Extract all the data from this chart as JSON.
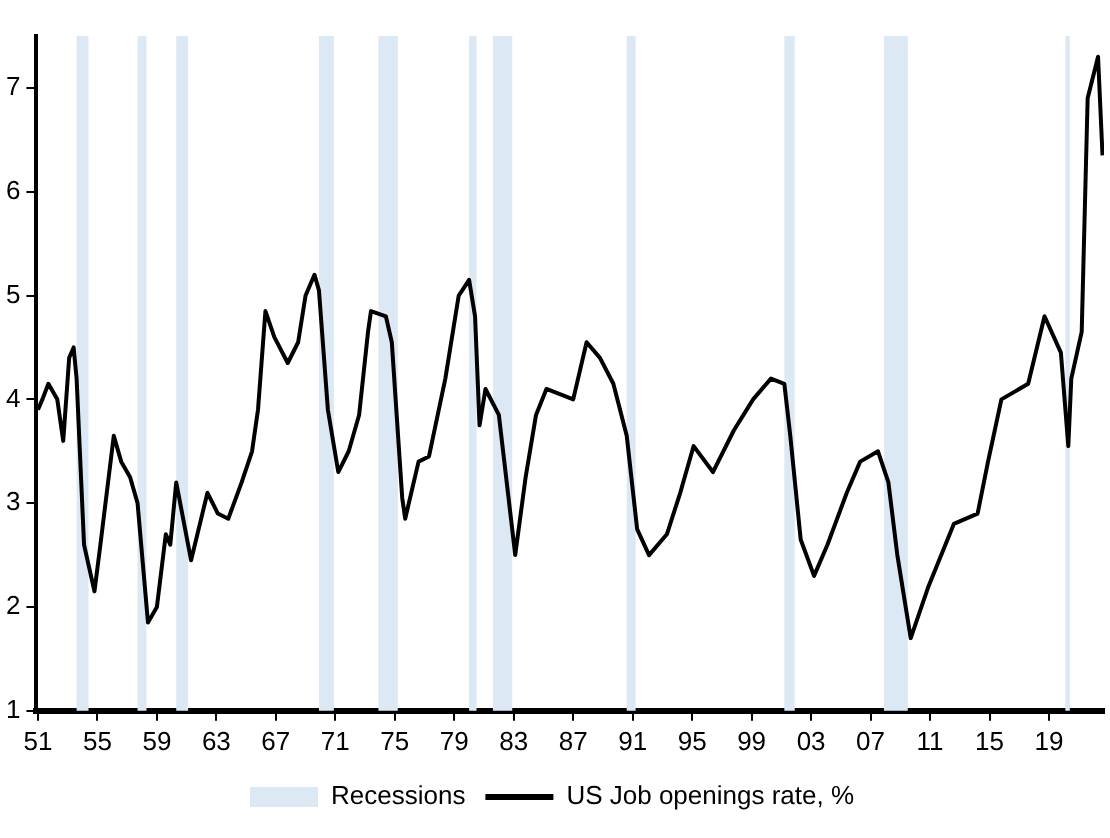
{
  "chart_data": {
    "type": "line",
    "x": [
      1951.0,
      1951.3,
      1951.7,
      1952.3,
      1952.7,
      1953.1,
      1953.4,
      1953.6,
      1954.1,
      1954.8,
      1955.2,
      1956.1,
      1956.6,
      1957.2,
      1957.7,
      1958.4,
      1959.0,
      1959.6,
      1959.9,
      1960.3,
      1961.3,
      1962.4,
      1963.1,
      1963.8,
      1964.7,
      1965.4,
      1965.8,
      1966.3,
      1966.9,
      1967.8,
      1968.5,
      1969.0,
      1969.6,
      1969.9,
      1970.5,
      1971.2,
      1971.9,
      1972.6,
      1973.2,
      1973.4,
      1974.4,
      1974.8,
      1975.5,
      1975.7,
      1976.6,
      1977.3,
      1978.4,
      1979.3,
      1980.0,
      1980.4,
      1980.7,
      1981.1,
      1982.0,
      1983.1,
      1983.8,
      1984.5,
      1985.2,
      1987.0,
      1987.9,
      1988.8,
      1989.7,
      1990.6,
      1991.3,
      1992.1,
      1993.3,
      1994.2,
      1995.1,
      1996.4,
      1997.8,
      1999.1,
      2000.3,
      2001.2,
      2001.6,
      2002.3,
      2003.2,
      2004.1,
      2005.4,
      2006.3,
      2007.5,
      2008.2,
      2008.8,
      2009.7,
      2010.9,
      2012.6,
      2014.2,
      2014.9,
      2015.8,
      2017.6,
      2018.7,
      2019.8,
      2020.3,
      2020.5,
      2021.2,
      2021.6,
      2022.3,
      2022.6
    ],
    "series": [
      {
        "name": "US Job openings rate, %",
        "color": "#000000",
        "values": [
          3.9,
          4.0,
          4.15,
          4.0,
          3.6,
          4.4,
          4.5,
          4.2,
          2.6,
          2.15,
          2.6,
          3.65,
          3.4,
          3.25,
          3.0,
          1.85,
          2.0,
          2.7,
          2.6,
          3.2,
          2.45,
          3.1,
          2.9,
          2.85,
          3.2,
          3.5,
          3.9,
          4.85,
          4.6,
          4.35,
          4.55,
          5.0,
          5.2,
          5.05,
          3.9,
          3.3,
          3.5,
          3.85,
          4.65,
          4.85,
          4.8,
          4.55,
          3.05,
          2.85,
          3.4,
          3.45,
          4.2,
          5.0,
          5.15,
          4.8,
          3.75,
          4.1,
          3.85,
          2.5,
          3.25,
          3.85,
          4.1,
          4.0,
          4.55,
          4.4,
          4.15,
          3.65,
          2.75,
          2.5,
          2.7,
          3.1,
          3.55,
          3.3,
          3.7,
          4.0,
          4.2,
          4.15,
          3.65,
          2.65,
          2.3,
          2.6,
          3.1,
          3.4,
          3.5,
          3.2,
          2.5,
          1.7,
          2.2,
          2.8,
          2.9,
          3.4,
          4.0,
          4.15,
          4.8,
          4.45,
          3.55,
          4.2,
          4.65,
          6.9,
          7.3,
          6.35
        ]
      }
    ],
    "xlim": [
      1950.9,
      2022.7
    ],
    "xticks": [
      {
        "value": 1951,
        "label": "51"
      },
      {
        "value": 1955,
        "label": "55"
      },
      {
        "value": 1959,
        "label": "59"
      },
      {
        "value": 1963,
        "label": "63"
      },
      {
        "value": 1967,
        "label": "67"
      },
      {
        "value": 1971,
        "label": "71"
      },
      {
        "value": 1975,
        "label": "75"
      },
      {
        "value": 1979,
        "label": "79"
      },
      {
        "value": 1983,
        "label": "83"
      },
      {
        "value": 1987,
        "label": "87"
      },
      {
        "value": 1991,
        "label": "91"
      },
      {
        "value": 1995,
        "label": "95"
      },
      {
        "value": 1999,
        "label": "99"
      },
      {
        "value": 2003,
        "label": "03"
      },
      {
        "value": 2007,
        "label": "07"
      },
      {
        "value": 2011,
        "label": "11"
      },
      {
        "value": 2015,
        "label": "15"
      },
      {
        "value": 2019,
        "label": "19"
      }
    ],
    "ylim": [
      1,
      7.5
    ],
    "yticks": [
      1,
      2,
      3,
      4,
      5,
      6,
      7
    ],
    "bands": [
      {
        "axis": "x",
        "from": 1953.6,
        "to": 1954.4,
        "label": "Recessions",
        "color": "#dce8f3"
      },
      {
        "axis": "x",
        "from": 1957.7,
        "to": 1958.3,
        "color": "#dce8f3"
      },
      {
        "axis": "x",
        "from": 1960.3,
        "to": 1961.1,
        "color": "#dce8f3"
      },
      {
        "axis": "x",
        "from": 1969.9,
        "to": 1970.9,
        "color": "#dce8f3"
      },
      {
        "axis": "x",
        "from": 1973.9,
        "to": 1975.2,
        "color": "#dce8f3"
      },
      {
        "axis": "x",
        "from": 1980.0,
        "to": 1980.5,
        "color": "#dce8f3"
      },
      {
        "axis": "x",
        "from": 1981.6,
        "to": 1982.9,
        "color": "#dce8f3"
      },
      {
        "axis": "x",
        "from": 1990.6,
        "to": 1991.2,
        "color": "#dce8f3"
      },
      {
        "axis": "x",
        "from": 2001.2,
        "to": 2001.9,
        "color": "#dce8f3"
      },
      {
        "axis": "x",
        "from": 2007.9,
        "to": 2009.5,
        "color": "#dce8f3"
      },
      {
        "axis": "x",
        "from": 2020.1,
        "to": 2020.4,
        "color": "#dce8f3"
      }
    ],
    "grid": false,
    "legend": "bottom",
    "marker": "none",
    "line_style": "solid"
  }
}
